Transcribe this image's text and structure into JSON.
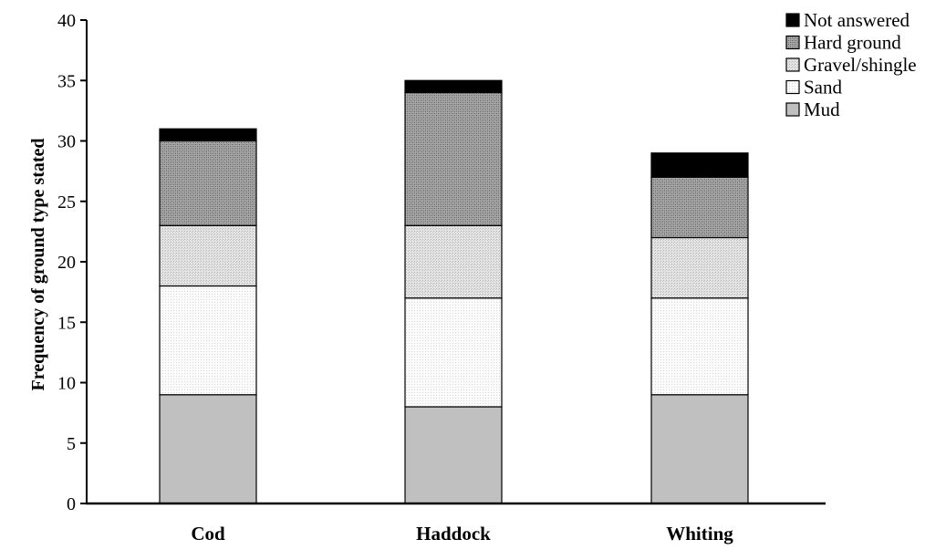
{
  "chart_data": {
    "type": "bar",
    "stacked": true,
    "categories": [
      "Cod",
      "Haddock",
      "Whiting"
    ],
    "series": [
      {
        "name": "Mud",
        "values": [
          9,
          8,
          9
        ],
        "color": "#c0c0c0",
        "pattern": "solid"
      },
      {
        "name": "Sand",
        "values": [
          9,
          9,
          8
        ],
        "color": "#f7f7f7",
        "pattern": "fine-dots"
      },
      {
        "name": "Gravel/shingle",
        "values": [
          5,
          6,
          5
        ],
        "color": "#dcdcdc",
        "pattern": "light-dots"
      },
      {
        "name": "Hard ground",
        "values": [
          7,
          11,
          5
        ],
        "color": "#8c8c8c",
        "pattern": "dark-crosshatch"
      },
      {
        "name": "Not answered",
        "values": [
          1,
          1,
          2
        ],
        "color": "#000000",
        "pattern": "solid"
      }
    ],
    "title": "",
    "xlabel": "",
    "ylabel": "Frequency  of ground type stated",
    "ylim": [
      0,
      40
    ],
    "yticks": [
      0,
      5,
      10,
      15,
      20,
      25,
      30,
      35,
      40
    ],
    "grid": false,
    "legend": "top-right"
  }
}
